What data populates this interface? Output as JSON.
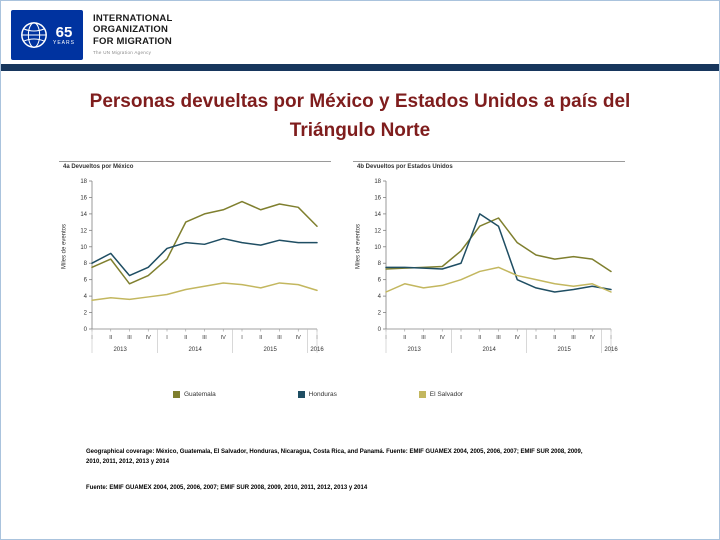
{
  "page": {
    "border_color": "#aac3dd",
    "bar_color": "#17365d",
    "title_color": "#7f1d1d"
  },
  "header": {
    "logo": {
      "brand_blue": "#0033a0",
      "years_number": "65",
      "years_word": "YEARS"
    },
    "org_lines": [
      "INTERNATIONAL",
      "ORGANIZATION",
      "FOR MIGRATION"
    ],
    "tagline": "The UN Migration Agency"
  },
  "title": {
    "lines": [
      "Personas devueltas por México y Estados Unidos a país del",
      "Triángulo Norte"
    ]
  },
  "chart_data": [
    {
      "type": "line",
      "title": "4a Devueltos por México",
      "ylabel": "Miles de eventos",
      "ylim": [
        0,
        18
      ],
      "ytick_step": 2,
      "grid": false,
      "quarters": [
        "I",
        "II",
        "III",
        "IV",
        "I",
        "II",
        "III",
        "IV",
        "I",
        "II",
        "III",
        "IV",
        "I"
      ],
      "year_groups": [
        {
          "label": "2013",
          "span": 4
        },
        {
          "label": "2014",
          "span": 4
        },
        {
          "label": "2015",
          "span": 4
        },
        {
          "label": "2016",
          "span": 1
        }
      ],
      "series": [
        {
          "name": "Guatemala",
          "color": "#7f7f2e",
          "values": [
            7.5,
            8.5,
            5.5,
            6.5,
            8.5,
            13.0,
            14.0,
            14.5,
            15.5,
            14.5,
            15.2,
            14.8,
            12.5
          ]
        },
        {
          "name": "Honduras",
          "color": "#1f4e63",
          "values": [
            8.0,
            9.2,
            6.5,
            7.5,
            9.8,
            10.5,
            10.3,
            11.0,
            10.5,
            10.2,
            10.8,
            10.5,
            10.5
          ]
        },
        {
          "name": "El Salvador",
          "color": "#c3b75f",
          "values": [
            3.5,
            3.8,
            3.6,
            3.9,
            4.2,
            4.8,
            5.2,
            5.6,
            5.4,
            5.0,
            5.6,
            5.4,
            4.7
          ]
        }
      ]
    },
    {
      "type": "line",
      "title": "4b Devueltos por Estados Unidos",
      "ylabel": "Miles de eventos",
      "ylim": [
        0,
        18
      ],
      "ytick_step": 2,
      "grid": false,
      "quarters": [
        "I",
        "II",
        "III",
        "IV",
        "I",
        "II",
        "III",
        "IV",
        "I",
        "II",
        "III",
        "IV",
        "I"
      ],
      "year_groups": [
        {
          "label": "2013",
          "span": 4
        },
        {
          "label": "2014",
          "span": 4
        },
        {
          "label": "2015",
          "span": 4
        },
        {
          "label": "2016",
          "span": 1
        }
      ],
      "series": [
        {
          "name": "Guatemala",
          "color": "#7f7f2e",
          "values": [
            7.3,
            7.4,
            7.5,
            7.6,
            9.5,
            12.5,
            13.5,
            10.5,
            9.0,
            8.5,
            8.8,
            8.5,
            7.0
          ]
        },
        {
          "name": "Honduras",
          "color": "#1f4e63",
          "values": [
            7.5,
            7.5,
            7.4,
            7.3,
            8.0,
            14.0,
            12.5,
            6.0,
            5.0,
            4.5,
            4.8,
            5.2,
            4.8
          ]
        },
        {
          "name": "El Salvador",
          "color": "#c3b75f",
          "values": [
            4.5,
            5.5,
            5.0,
            5.3,
            6.0,
            7.0,
            7.5,
            6.5,
            6.0,
            5.5,
            5.2,
            5.5,
            4.5
          ]
        }
      ]
    }
  ],
  "legend": {
    "items": [
      {
        "label": "Guatemala",
        "color": "#7f7f2e"
      },
      {
        "label": "Honduras",
        "color": "#1f4e63"
      },
      {
        "label": "El Salvador",
        "color": "#c3b75f"
      }
    ]
  },
  "footnotes": {
    "line1": "Geographical coverage: México, Guatemala, El Salvador, Honduras, Nicaragua, Costa Rica, and Panamá. Fuente: EMIF GUAMEX 2004, 2005, 2006, 2007; EMIF SUR 2008, 2009, 2010, 2011, 2012, 2013 y 2014",
    "line2": "Fuente: EMIF GUAMEX 2004, 2005, 2006, 2007; EMIF SUR 2008, 2009, 2010, 2011, 2012, 2013 y 2014"
  }
}
